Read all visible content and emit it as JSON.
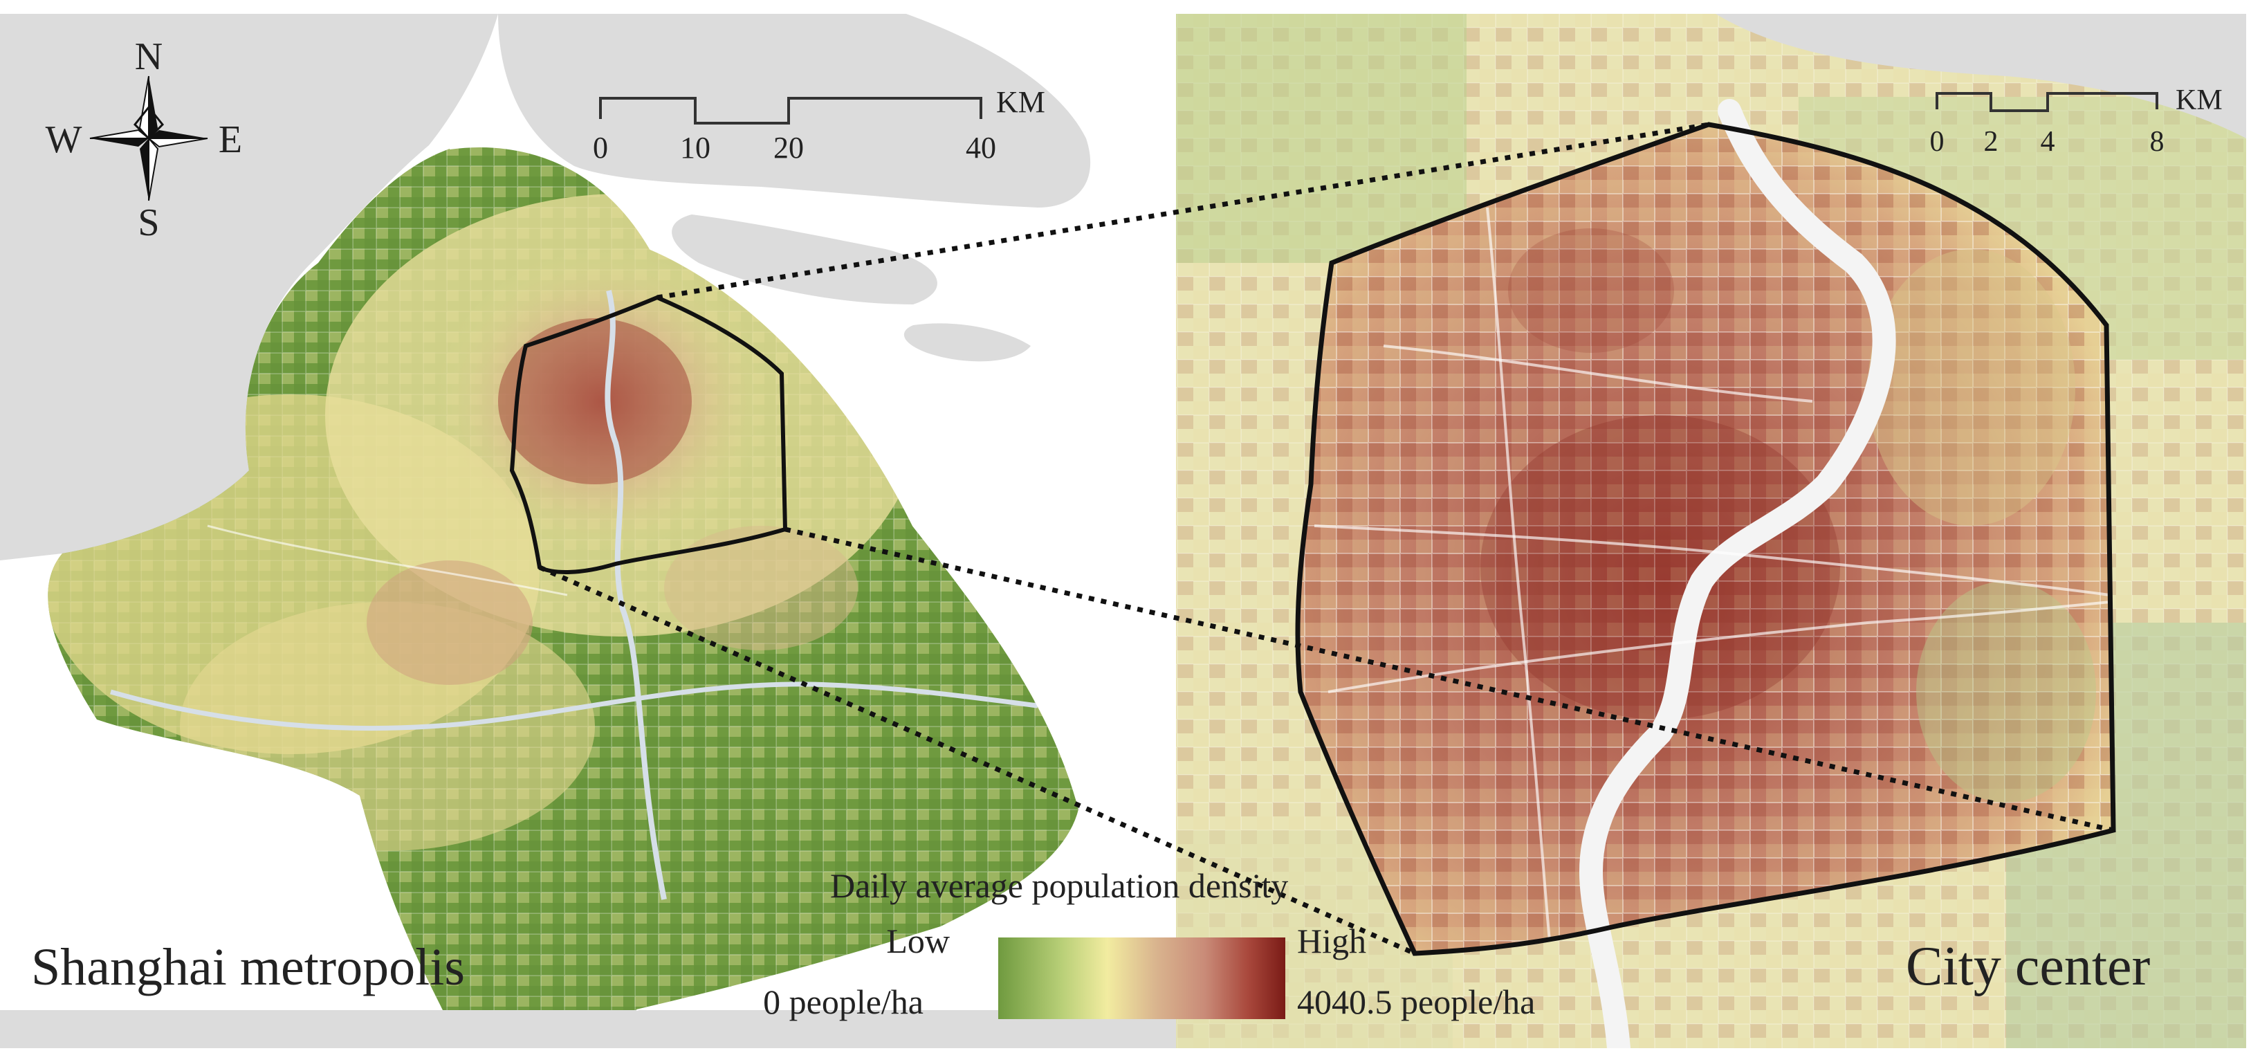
{
  "left_map": {
    "title": "Shanghai metropolis",
    "compass": {
      "north": "N",
      "south": "S",
      "east": "E",
      "west": "W"
    },
    "scale_bar": {
      "ticks": [
        "0",
        "10",
        "20",
        "40"
      ],
      "unit": "KM"
    }
  },
  "right_map": {
    "title": "City center",
    "scale_bar": {
      "ticks": [
        "0",
        "2",
        "4",
        "8"
      ],
      "unit": "KM"
    }
  },
  "legend": {
    "title": "Daily average population density",
    "low_label": "Low",
    "high_label": "High",
    "min_value": "0 people/ha",
    "max_value": "4040.5 people/ha",
    "colors": [
      "#6f9a3f",
      "#a9c46a",
      "#f2eca0",
      "#d9b48e",
      "#c98b78",
      "#a9483c",
      "#7a1b16"
    ]
  },
  "colors": {
    "water": "#dcdcdc",
    "land_low": "#6f9a3f",
    "river": "#eeeeee",
    "boundary": "#111111"
  }
}
